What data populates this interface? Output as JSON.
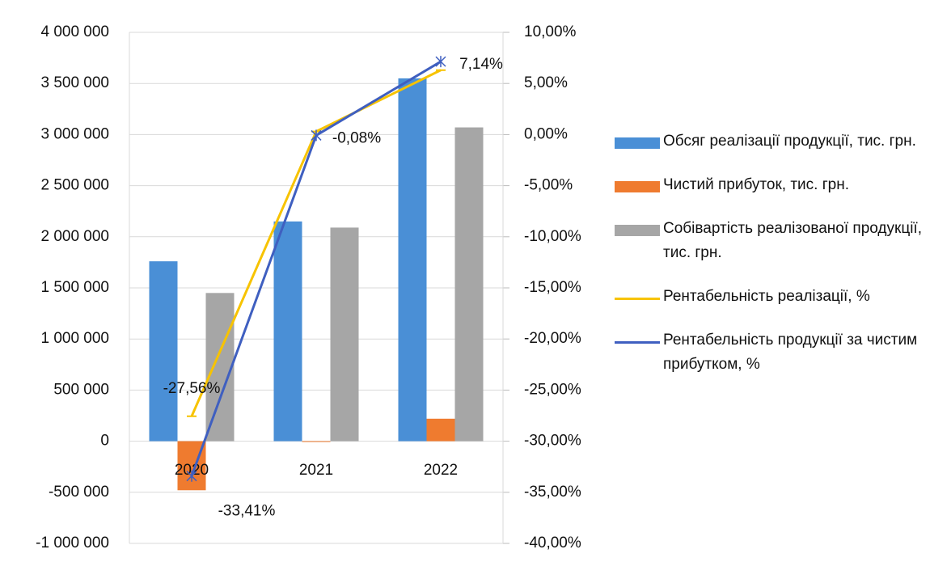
{
  "chart_data": {
    "type": "bar",
    "categories": [
      "2020",
      "2021",
      "2022"
    ],
    "series": [
      {
        "name": "Обсяг реалізації продукції, тис. грн.",
        "color": "#4a8fd6",
        "type": "bar",
        "values": [
          1760000,
          2150000,
          3550000
        ]
      },
      {
        "name": "Чистий прибуток, тис. грн.",
        "color": "#ef7b2f",
        "type": "bar",
        "values": [
          -480000,
          -1700,
          220000
        ]
      },
      {
        "name": "Собівартість реалізованої продукції, тис. грн.",
        "color": "#a6a6a6",
        "type": "bar",
        "values": [
          1450000,
          2090000,
          3070000
        ]
      },
      {
        "name": "Рентабельність реалізації, %",
        "color": "#f7c300",
        "type": "line",
        "axis": "y2",
        "values": [
          -27.56,
          0.3,
          6.3
        ],
        "value_labels": [
          "-27,56%",
          null,
          null
        ]
      },
      {
        "name": "Рентабельність продукції за чистим прибутком, %",
        "color": "#3f5fc0",
        "type": "line",
        "axis": "y2",
        "values": [
          -33.41,
          -0.08,
          7.14
        ],
        "value_labels": [
          "-33,41%",
          "-0,08%",
          "7,14%"
        ]
      }
    ],
    "ylim": [
      -1000000,
      4000000
    ],
    "yticks": [
      {
        "value": -1000000,
        "label": "-1 000 000"
      },
      {
        "value": -500000,
        "label": "-500 000"
      },
      0,
      {
        "value": 500000,
        "label": "500 000"
      },
      {
        "value": 1000000,
        "label": "1 000 000"
      },
      {
        "value": 1500000,
        "label": "1 500 000"
      },
      {
        "value": 2000000,
        "label": "2 000 000"
      },
      {
        "value": 2500000,
        "label": "2 500 000"
      },
      {
        "value": 3000000,
        "label": "3 000 000"
      },
      {
        "value": 3500000,
        "label": "3 500 000"
      },
      {
        "value": 4000000,
        "label": "4 000 000"
      }
    ],
    "y2lim": [
      -40,
      10
    ],
    "y2ticks": [
      {
        "value": -40,
        "label": "-40,00%"
      },
      {
        "value": -35,
        "label": "-35,00%"
      },
      {
        "value": -30,
        "label": "-30,00%"
      },
      {
        "value": -25,
        "label": "-25,00%"
      },
      {
        "value": -20,
        "label": "-20,00%"
      },
      {
        "value": -15,
        "label": "-15,00%"
      },
      {
        "value": -10,
        "label": "-10,00%"
      },
      {
        "value": -5,
        "label": "-5,00%"
      },
      {
        "value": 0,
        "label": "0,00%"
      },
      {
        "value": 5,
        "label": "5,00%"
      },
      {
        "value": 10,
        "label": "10,00%"
      }
    ],
    "grid": true,
    "legend": "right"
  }
}
